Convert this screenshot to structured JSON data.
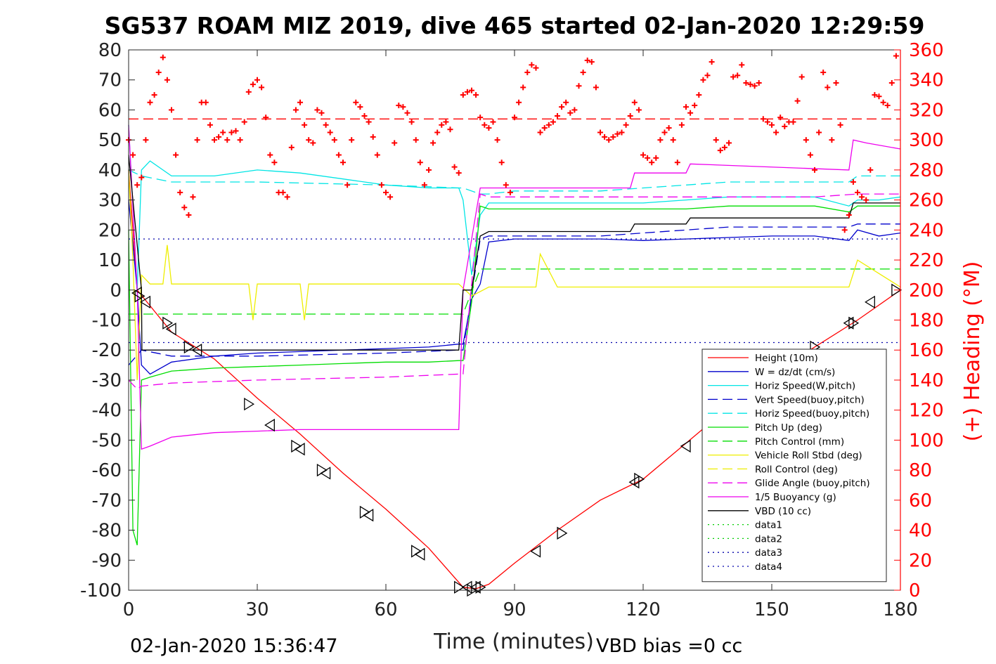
{
  "chart_data": {
    "type": "line",
    "title": "SG537 ROAM MIZ 2019, dive 465 started 02-Jan-2020 12:29:59",
    "xlabel": "Time (minutes)",
    "ylabel_right": "(+) Heading (°M)",
    "xlim": [
      0,
      180
    ],
    "ylim_left": [
      -100,
      80
    ],
    "ylim_right": [
      0,
      360
    ],
    "x_ticks": [
      "0",
      "30",
      "60",
      "90",
      "120",
      "150",
      "180"
    ],
    "y_ticks_left": [
      "80",
      "70",
      "60",
      "50",
      "40",
      "30",
      "20",
      "10",
      "0",
      "-10",
      "-20",
      "-30",
      "-40",
      "-50",
      "-60",
      "-70",
      "-80",
      "-90",
      "-100"
    ],
    "y_ticks_right": [
      "360",
      "340",
      "320",
      "300",
      "280",
      "260",
      "240",
      "220",
      "200",
      "180",
      "160",
      "140",
      "120",
      "100",
      "80",
      "60",
      "40",
      "20",
      "0"
    ],
    "footer_left": "02-Jan-2020 15:36:47",
    "footer_right": "VBD bias =0 cc",
    "legend_position": "bottom-right",
    "legend": [
      {
        "label": "Height (10m)",
        "color": "#ff0000",
        "dash": "solid"
      },
      {
        "label": "W = dz/dt (cm/s)",
        "color": "#0000cc",
        "dash": "solid"
      },
      {
        "label": "Horiz Speed(W,pitch)",
        "color": "#00e5e5",
        "dash": "solid"
      },
      {
        "label": "Vert Speed(buoy,pitch)",
        "color": "#0000cc",
        "dash": "dashed"
      },
      {
        "label": "Horiz Speed(buoy,pitch)",
        "color": "#00e5e5",
        "dash": "dashed"
      },
      {
        "label": "Pitch Up (deg)",
        "color": "#00dd00",
        "dash": "solid"
      },
      {
        "label": "Pitch Control (mm)",
        "color": "#00dd00",
        "dash": "dashed"
      },
      {
        "label": "Vehicle Roll Stbd (deg)",
        "color": "#eeee00",
        "dash": "solid"
      },
      {
        "label": "Roll Control (deg)",
        "color": "#eeee00",
        "dash": "dashed"
      },
      {
        "label": "Glide Angle (buoy,pitch)",
        "color": "#ee00ee",
        "dash": "dashed"
      },
      {
        "label": "1/5 Buoyancy (g)",
        "color": "#ee00ee",
        "dash": "solid"
      },
      {
        "label": "VBD (10 cc)",
        "color": "#000000",
        "dash": "solid"
      },
      {
        "label": "data1",
        "color": "#00cc00",
        "dash": "dotted"
      },
      {
        "label": "data2",
        "color": "#00cc00",
        "dash": "dotted"
      },
      {
        "label": "data3",
        "color": "#0000aa",
        "dash": "dotted"
      },
      {
        "label": "data4",
        "color": "#0000aa",
        "dash": "dotted"
      }
    ],
    "series": [
      {
        "name": "Height (10m)",
        "axis": "left",
        "color": "#ff0000",
        "dash": "solid",
        "x": [
          0,
          2,
          10,
          20,
          30,
          40,
          50,
          60,
          70,
          78,
          81,
          84,
          90,
          100,
          110,
          120,
          130,
          140,
          150,
          160,
          170,
          180
        ],
        "y": [
          40,
          0,
          -14,
          -23,
          -36,
          -48,
          -61,
          -73,
          -86,
          -99,
          -99.5,
          -98,
          -91,
          -80,
          -70,
          -63,
          -51,
          -39,
          -28,
          -19,
          -10,
          0
        ]
      },
      {
        "name": "W = dz/dt (cm/s)",
        "axis": "left",
        "color": "#0000cc",
        "dash": "solid",
        "x": [
          0,
          2,
          3,
          5,
          10,
          20,
          30,
          40,
          50,
          60,
          70,
          77,
          78,
          80,
          82,
          84,
          90,
          100,
          110,
          120,
          130,
          140,
          150,
          160,
          168,
          170,
          175,
          180
        ],
        "y": [
          30,
          0,
          -25,
          -28,
          -24,
          -22,
          -21,
          -20.5,
          -20,
          -19.5,
          -19,
          -18,
          -18,
          -3,
          2,
          16,
          17,
          17,
          17,
          16.5,
          17,
          17.5,
          18,
          18,
          16.5,
          20,
          18,
          19
        ]
      },
      {
        "name": "Horiz Speed(W,pitch)",
        "axis": "left",
        "color": "#00e5e5",
        "dash": "solid",
        "x": [
          0,
          2,
          3,
          5,
          10,
          20,
          30,
          40,
          50,
          60,
          70,
          77,
          78,
          80,
          82,
          84,
          90,
          100,
          110,
          120,
          130,
          140,
          150,
          160,
          168,
          170,
          175,
          180
        ],
        "y": [
          55,
          0,
          40,
          43,
          38,
          38,
          40,
          39,
          37,
          35,
          34,
          34,
          30,
          5,
          25,
          29,
          29,
          29,
          29,
          29,
          30,
          31,
          31,
          31,
          28,
          30,
          30,
          31
        ]
      },
      {
        "name": "Vert Speed(buoy,pitch)",
        "axis": "left",
        "color": "#0000cc",
        "dash": "dashed",
        "x": [
          0,
          3,
          10,
          30,
          60,
          77,
          78,
          82,
          84,
          90,
          100,
          110,
          120,
          130,
          140,
          150,
          160,
          168,
          170,
          180
        ],
        "y": [
          -25,
          -20,
          -22,
          -22,
          -21,
          -20,
          -20,
          17,
          18,
          18,
          18,
          18,
          19,
          20,
          21,
          21,
          21,
          21,
          22,
          22
        ]
      },
      {
        "name": "Horiz Speed(buoy,pitch)",
        "axis": "left",
        "color": "#00e5e5",
        "dash": "dashed",
        "x": [
          0,
          3,
          10,
          30,
          60,
          77,
          78,
          82,
          84,
          90,
          100,
          110,
          120,
          130,
          140,
          150,
          160,
          168,
          170,
          180
        ],
        "y": [
          40,
          38,
          36,
          36,
          35,
          34,
          34,
          32,
          32,
          33,
          33,
          33,
          34,
          35,
          36,
          36,
          36,
          36,
          38,
          38
        ]
      },
      {
        "name": "Pitch Up (deg)",
        "axis": "left",
        "color": "#00dd00",
        "dash": "solid",
        "x": [
          0,
          1,
          2,
          3,
          5,
          10,
          20,
          30,
          40,
          50,
          60,
          70,
          77,
          78,
          80,
          82,
          84,
          90,
          100,
          110,
          120,
          130,
          140,
          150,
          160,
          168,
          170,
          180
        ],
        "y": [
          20,
          -80,
          -85,
          -30,
          -29,
          -27,
          -26,
          -25.5,
          -25,
          -24.5,
          -24,
          -24,
          -23.5,
          -23.5,
          -4,
          28,
          27,
          27,
          27,
          27,
          27,
          27,
          28,
          28,
          28,
          26,
          28,
          28
        ]
      },
      {
        "name": "Pitch Control (mm)",
        "axis": "left",
        "color": "#00dd00",
        "dash": "dashed",
        "x": [
          0,
          77,
          78,
          82,
          180
        ],
        "y": [
          -8,
          -8,
          -8,
          7,
          7
        ]
      },
      {
        "name": "Vehicle Roll Stbd (deg)",
        "axis": "left",
        "color": "#eeee00",
        "dash": "solid",
        "x": [
          0,
          1,
          2,
          3,
          5,
          8,
          9,
          10,
          15,
          28,
          29,
          30,
          40,
          41,
          42,
          50,
          60,
          70,
          77,
          80,
          84,
          90,
          95,
          96,
          100,
          110,
          120,
          130,
          140,
          150,
          160,
          168,
          170,
          180
        ],
        "y": [
          40,
          10,
          -30,
          5,
          2,
          2,
          15,
          2,
          2,
          2,
          -10,
          2,
          2,
          -10,
          2,
          2,
          2,
          2,
          2,
          -2,
          1,
          1,
          1,
          12,
          1,
          1,
          1,
          1,
          1,
          1,
          1,
          1,
          10,
          1
        ]
      },
      {
        "name": "Glide Angle (buoy,pitch)",
        "axis": "left",
        "color": "#ee00ee",
        "dash": "dashed",
        "x": [
          0,
          2,
          3,
          10,
          30,
          60,
          77,
          78,
          82,
          84,
          90,
          100,
          110,
          120,
          130,
          140,
          150,
          160,
          170,
          180
        ],
        "y": [
          -30,
          -33,
          -32,
          -31,
          -30,
          -29,
          -28,
          -28,
          32,
          31,
          31,
          31,
          31,
          31,
          31,
          31,
          31,
          31,
          32,
          32
        ]
      },
      {
        "name": "1/5 Buoyancy (g)",
        "axis": "left",
        "color": "#ee00ee",
        "dash": "solid",
        "x": [
          0,
          2,
          3,
          5,
          10,
          20,
          30,
          40,
          50,
          60,
          70,
          77,
          78,
          82,
          84,
          90,
          100,
          110,
          117,
          118,
          130,
          131,
          168,
          169,
          172,
          180
        ],
        "y": [
          55,
          0,
          -53,
          -52,
          -49,
          -47.5,
          -47,
          -46.5,
          -46.5,
          -46.5,
          -46.5,
          -46.5,
          0,
          34,
          34,
          34,
          34,
          34,
          34,
          39,
          39,
          42,
          40,
          50,
          49,
          47
        ]
      },
      {
        "name": "VBD (10 cc)",
        "axis": "left",
        "color": "#000000",
        "dash": "solid",
        "x": [
          0,
          3,
          3.1,
          77,
          78,
          80,
          82,
          84,
          117,
          118,
          130,
          131,
          168,
          169,
          180
        ],
        "y": [
          45,
          0,
          -20,
          -20,
          0,
          0,
          18,
          19.5,
          19.5,
          22,
          22,
          24,
          24,
          29,
          29
        ]
      },
      {
        "name": "data3",
        "axis": "left",
        "color": "#0000aa",
        "dash": "dotted",
        "x": [
          0,
          180
        ],
        "y": [
          17,
          17
        ]
      },
      {
        "name": "data4",
        "axis": "left",
        "color": "#0000aa",
        "dash": "dotted",
        "x": [
          0,
          180
        ],
        "y": [
          -17.5,
          -17.5
        ]
      },
      {
        "name": "Heading reference",
        "axis": "right",
        "color": "#ff0000",
        "dash": "dashed",
        "x": [
          0,
          180
        ],
        "y": [
          314,
          314
        ]
      }
    ],
    "heading_points": {
      "axis": "right",
      "color": "#ff0000",
      "marker": "+",
      "x": [
        0,
        1,
        2,
        3,
        4,
        5,
        6,
        7,
        8,
        9,
        10,
        11,
        12,
        13,
        14,
        15,
        16,
        17,
        18,
        19,
        20,
        21,
        22,
        23,
        24,
        25,
        26,
        27,
        28,
        29,
        30,
        31,
        32,
        33,
        34,
        35,
        36,
        37,
        38,
        39,
        40,
        41,
        42,
        43,
        44,
        45,
        46,
        47,
        48,
        49,
        50,
        51,
        52,
        53,
        54,
        55,
        56,
        57,
        58,
        59,
        60,
        61,
        62,
        63,
        64,
        65,
        66,
        67,
        68,
        69,
        70,
        71,
        72,
        73,
        74,
        75,
        76,
        77,
        78,
        79,
        80,
        81,
        82,
        83,
        84,
        85,
        86,
        87,
        88,
        89,
        90,
        91,
        92,
        93,
        94,
        95,
        96,
        97,
        98,
        99,
        100,
        101,
        102,
        103,
        104,
        105,
        106,
        107,
        108,
        109,
        110,
        111,
        112,
        113,
        114,
        115,
        116,
        117,
        118,
        119,
        120,
        121,
        122,
        123,
        124,
        125,
        126,
        127,
        128,
        129,
        130,
        131,
        132,
        133,
        134,
        135,
        136,
        137,
        138,
        139,
        140,
        141,
        142,
        143,
        144,
        145,
        146,
        147,
        148,
        149,
        150,
        151,
        152,
        153,
        154,
        155,
        156,
        157,
        158,
        159,
        160,
        161,
        162,
        163,
        164,
        165,
        166,
        167,
        168,
        169,
        170,
        171,
        172,
        173,
        174,
        175,
        176,
        177,
        178,
        179
      ],
      "y": [
        300,
        290,
        270,
        275,
        300,
        325,
        330,
        345,
        355,
        340,
        320,
        290,
        265,
        255,
        250,
        262,
        300,
        325,
        325,
        310,
        300,
        302,
        305,
        300,
        305,
        306,
        300,
        312,
        332,
        337,
        340,
        335,
        315,
        290,
        285,
        265,
        265,
        262,
        295,
        320,
        325,
        310,
        300,
        298,
        320,
        318,
        310,
        305,
        300,
        290,
        285,
        270,
        300,
        325,
        322,
        316,
        312,
        302,
        290,
        270,
        265,
        262,
        298,
        323,
        322,
        318,
        312,
        300,
        285,
        270,
        280,
        298,
        305,
        310,
        312,
        307,
        282,
        278,
        330,
        332,
        333,
        330,
        315,
        310,
        308,
        312,
        300,
        285,
        270,
        265,
        315,
        325,
        335,
        345,
        350,
        348,
        305,
        308,
        310,
        312,
        316,
        322,
        325,
        318,
        320,
        336,
        345,
        353,
        352,
        335,
        305,
        302,
        300,
        302,
        304,
        305,
        310,
        316,
        325,
        320,
        290,
        288,
        285,
        288,
        300,
        305,
        308,
        300,
        285,
        310,
        322,
        318,
        323,
        330,
        340,
        343,
        352,
        300,
        293,
        295,
        298,
        342,
        343,
        350,
        338,
        337,
        336,
        338,
        314,
        312,
        310,
        305,
        315,
        309,
        312,
        312,
        326,
        342,
        300,
        290,
        280,
        305,
        345,
        335,
        300,
        338,
        310,
        240,
        250,
        272,
        265,
        262,
        260,
        280,
        330,
        329,
        325,
        323,
        338,
        356
      ]
    },
    "markers": {
      "color": "#000000",
      "shape": "triangle",
      "x": [
        2,
        2.5,
        4,
        9,
        10,
        14,
        16,
        28,
        33,
        39,
        40,
        45,
        46,
        55,
        56,
        67,
        68,
        77,
        79,
        80,
        81,
        82,
        95,
        101,
        118,
        119,
        130,
        160,
        168,
        169,
        173,
        179
      ],
      "y": [
        -1,
        -2,
        -4,
        -11,
        -13,
        -19,
        -20,
        -38,
        -45,
        -52,
        -53,
        -60,
        -61,
        -74,
        -75,
        -87,
        -88,
        -99,
        -99,
        -100,
        -99,
        -99,
        -87,
        -81,
        -64,
        -63,
        -52,
        -19,
        -11,
        -11,
        -4,
        0
      ]
    }
  }
}
